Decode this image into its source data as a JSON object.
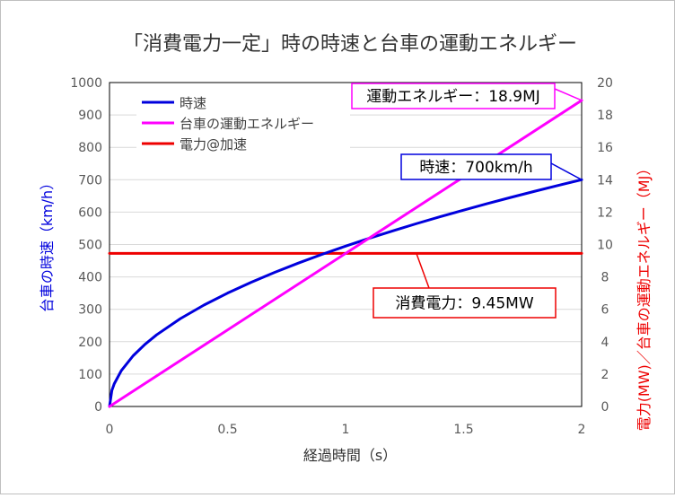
{
  "chart_data": {
    "type": "line",
    "title": "「消費電力一定」時の時速と台車の運動エネルギー",
    "xlabel": "経過時間（s）",
    "ylabel_left": "台車の時速（km/h）",
    "ylabel_right": "電力(MW)／台車の運動エネルギー（MJ）",
    "xlim": [
      0,
      2
    ],
    "ylim_left": [
      0,
      1000
    ],
    "ylim_right": [
      0,
      20
    ],
    "x_ticks": [
      0,
      0.5,
      1,
      1.5,
      2
    ],
    "x_tick_labels": [
      "0",
      "0.5",
      "1",
      "1.5",
      "2"
    ],
    "y_left_ticks": [
      0,
      100,
      200,
      300,
      400,
      500,
      600,
      700,
      800,
      900,
      1000
    ],
    "y_left_tick_labels": [
      "0",
      "100",
      "200",
      "300",
      "400",
      "500",
      "600",
      "700",
      "800",
      "900",
      "1000"
    ],
    "y_right_ticks": [
      0,
      2,
      4,
      6,
      8,
      10,
      12,
      14,
      16,
      18,
      20
    ],
    "y_right_tick_labels": [
      "0",
      "2",
      "4",
      "6",
      "8",
      "10",
      "12",
      "14",
      "16",
      "18",
      "20"
    ],
    "grid": true,
    "legend_position": "top-left",
    "series": [
      {
        "name": "時速",
        "axis": "left",
        "color": "#0000dd",
        "x": [
          0,
          0.01,
          0.02,
          0.05,
          0.1,
          0.15,
          0.2,
          0.3,
          0.4,
          0.5,
          0.6,
          0.7,
          0.8,
          0.9,
          1.0,
          1.1,
          1.2,
          1.3,
          1.4,
          1.5,
          1.6,
          1.7,
          1.8,
          1.9,
          2.0
        ],
        "values": [
          0,
          49.5,
          70,
          110.7,
          156.5,
          191.7,
          221.4,
          271.1,
          313.0,
          350.0,
          383.4,
          414.1,
          442.7,
          469.6,
          495.0,
          519.2,
          542.2,
          564.4,
          585.7,
          606.2,
          626.1,
          645.4,
          664.1,
          682.3,
          700
        ]
      },
      {
        "name": "台車の運動エネルギー",
        "axis": "right",
        "color": "#ff00ff",
        "x": [
          0,
          2
        ],
        "values": [
          0,
          18.9
        ]
      },
      {
        "name": "電力@加速",
        "axis": "right",
        "color": "#ee0000",
        "x": [
          0,
          2
        ],
        "values": [
          9.45,
          9.45
        ]
      }
    ],
    "annotations": [
      {
        "name": "energy-callout",
        "text": "運動エネルギー：18.9MJ",
        "color": "#ff00ff",
        "points_to": {
          "x": 2,
          "y": 18.9,
          "axis": "right"
        }
      },
      {
        "name": "speed-callout",
        "text": "時速：700km/h",
        "color": "#0000dd",
        "points_to": {
          "x": 2,
          "y": 700,
          "axis": "left"
        }
      },
      {
        "name": "power-callout",
        "text": "消費電力：9.45MW",
        "color": "#ee0000",
        "points_to": {
          "x": 1.3,
          "y": 9.45,
          "axis": "right"
        }
      }
    ]
  }
}
